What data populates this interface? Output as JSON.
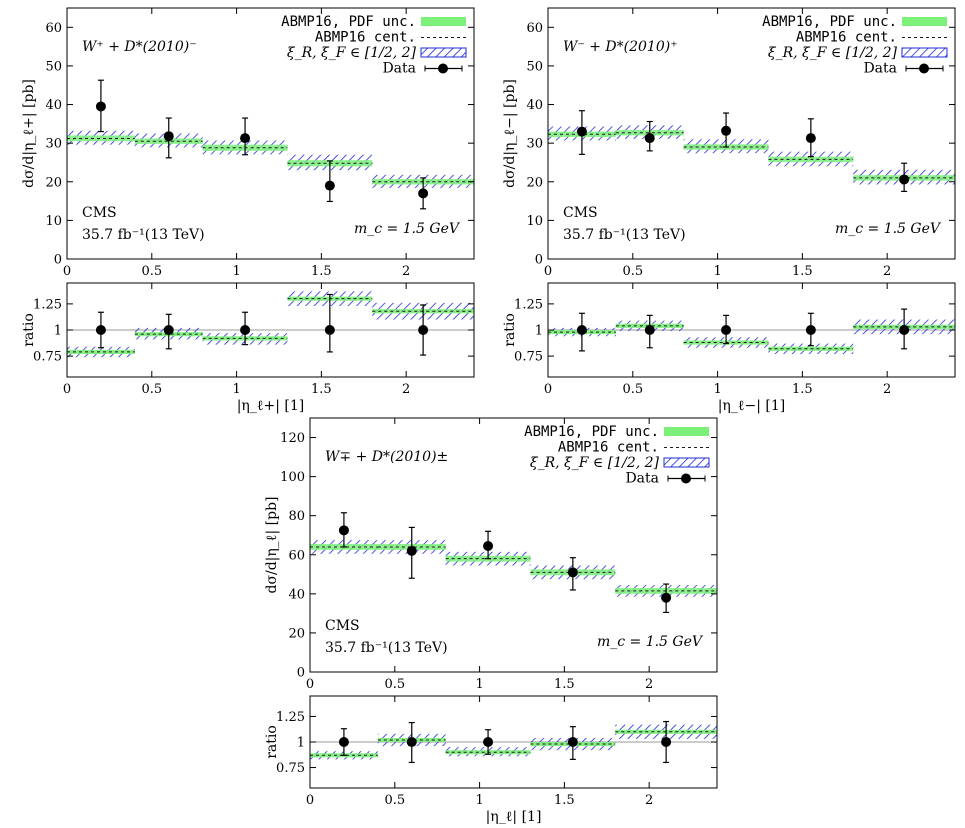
{
  "chart_data": [
    {
      "type": "step-band-with-points",
      "title": "",
      "process": "W⁺ + D*(2010)⁻",
      "xlabel": "|η_ℓ+| [1]",
      "ylabel": "dσ/d|η_ℓ+| [pb]",
      "ratio_ylabel": "ratio",
      "xlim": [
        0,
        2.4
      ],
      "ylim": [
        0,
        65
      ],
      "ratio_ylim": [
        0.55,
        1.45
      ],
      "xticks": [
        "0",
        "0.5",
        "1",
        "1.5",
        "2"
      ],
      "yticks": [
        "0",
        "10",
        "20",
        "30",
        "40",
        "50",
        "60"
      ],
      "ratio_yticks": [
        "0.75",
        "1",
        "1.25"
      ],
      "experiment": "CMS",
      "lumi_text": "35.7 fb⁻¹(13 TeV)",
      "mass_text": "m_c = 1.5 GeV",
      "legend": [
        "ABMP16, PDF unc.",
        "ABMP16 cent.",
        "ξ_R, ξ_F ∈ [1/2, 2]",
        "Data"
      ],
      "bins": [
        0,
        0.4,
        0.8,
        1.3,
        1.8,
        2.4
      ],
      "prediction_central": [
        31.2,
        30.5,
        28.8,
        24.8,
        20.0
      ],
      "pdf_unc_band": [
        [
          30.5,
          32.0
        ],
        [
          29.8,
          31.2
        ],
        [
          28.0,
          29.6
        ],
        [
          24.0,
          25.6
        ],
        [
          19.3,
          20.7
        ]
      ],
      "scale_unc_band": [
        [
          29.6,
          33.2
        ],
        [
          28.9,
          32.5
        ],
        [
          27.1,
          30.7
        ],
        [
          23.0,
          27.0
        ],
        [
          18.4,
          21.8
        ]
      ],
      "data_x": [
        0.2,
        0.6,
        1.05,
        1.55,
        2.1
      ],
      "data_y": [
        39.5,
        31.8,
        31.3,
        19.0,
        17.0
      ],
      "data_err_hi": [
        6.8,
        4.7,
        5.2,
        6.4,
        4.0
      ],
      "data_err_lo": [
        6.5,
        5.6,
        4.3,
        4.1,
        4.0
      ],
      "ratio_central": [
        0.79,
        0.96,
        0.92,
        1.3,
        1.18
      ],
      "ratio_band": [
        [
          0.74,
          0.84
        ],
        [
          0.91,
          1.02
        ],
        [
          0.86,
          0.97
        ],
        [
          1.23,
          1.37
        ],
        [
          1.1,
          1.26
        ]
      ],
      "ratio_data_err": [
        [
          0.83,
          1.17
        ],
        [
          0.82,
          1.15
        ],
        [
          0.86,
          1.17
        ],
        [
          0.79,
          1.34
        ],
        [
          0.76,
          1.24
        ]
      ]
    },
    {
      "type": "step-band-with-points",
      "title": "",
      "process": "W⁻ + D*(2010)⁺",
      "xlabel": "|η_ℓ−| [1]",
      "ylabel": "dσ/d|η_ℓ−| [pb]",
      "ratio_ylabel": "ratio",
      "xlim": [
        0,
        2.4
      ],
      "ylim": [
        0,
        65
      ],
      "ratio_ylim": [
        0.55,
        1.45
      ],
      "xticks": [
        "0",
        "0.5",
        "1",
        "1.5",
        "2"
      ],
      "yticks": [
        "0",
        "10",
        "20",
        "30",
        "40",
        "50",
        "60"
      ],
      "ratio_yticks": [
        "0.75",
        "1",
        "1.25"
      ],
      "experiment": "CMS",
      "lumi_text": "35.7 fb⁻¹(13 TeV)",
      "mass_text": "m_c = 1.5 GeV",
      "legend": [
        "ABMP16, PDF unc.",
        "ABMP16 cent.",
        "ξ_R, ξ_F ∈ [1/2, 2]",
        "Data"
      ],
      "bins": [
        0,
        0.4,
        0.8,
        1.3,
        1.8,
        2.4
      ],
      "prediction_central": [
        32.3,
        32.7,
        29.0,
        25.8,
        21.0
      ],
      "pdf_unc_band": [
        [
          31.6,
          33.0
        ],
        [
          32.0,
          33.4
        ],
        [
          28.3,
          29.7
        ],
        [
          25.1,
          26.5
        ],
        [
          20.3,
          21.7
        ]
      ],
      "scale_unc_band": [
        [
          30.7,
          34.3
        ],
        [
          31.1,
          34.6
        ],
        [
          27.4,
          31.0
        ],
        [
          24.0,
          27.8
        ],
        [
          19.3,
          23.1
        ]
      ],
      "data_x": [
        0.2,
        0.6,
        1.05,
        1.55,
        2.1
      ],
      "data_y": [
        33.0,
        31.3,
        33.2,
        31.3,
        20.6
      ],
      "data_err_hi": [
        5.4,
        4.3,
        4.6,
        5.0,
        4.2
      ],
      "data_err_lo": [
        5.9,
        3.3,
        4.2,
        4.8,
        3.1
      ],
      "ratio_central": [
        0.98,
        1.04,
        0.88,
        0.82,
        1.03
      ],
      "ratio_band": [
        [
          0.94,
          1.02
        ],
        [
          0.99,
          1.09
        ],
        [
          0.83,
          0.93
        ],
        [
          0.77,
          0.87
        ],
        [
          0.96,
          1.1
        ]
      ],
      "ratio_data_err": [
        [
          0.8,
          1.16
        ],
        [
          0.83,
          1.14
        ],
        [
          0.87,
          1.14
        ],
        [
          0.85,
          1.16
        ],
        [
          0.82,
          1.2
        ]
      ]
    },
    {
      "type": "step-band-with-points",
      "title": "",
      "process": "W∓ + D*(2010)±",
      "xlabel": "|η_ℓ| [1]",
      "ylabel": "dσ/d|η_ℓ| [pb]",
      "ratio_ylabel": "ratio",
      "xlim": [
        0,
        2.4
      ],
      "ylim": [
        0,
        130
      ],
      "ratio_ylim": [
        0.55,
        1.45
      ],
      "xticks": [
        "0",
        "0.5",
        "1",
        "1.5",
        "2"
      ],
      "yticks": [
        "0",
        "20",
        "40",
        "60",
        "80",
        "100",
        "120"
      ],
      "ratio_yticks": [
        "0.75",
        "1",
        "1.25"
      ],
      "experiment": "CMS",
      "lumi_text": "35.7 fb⁻¹(13 TeV)",
      "mass_text": "m_c = 1.5 GeV",
      "legend": [
        "ABMP16, PDF unc.",
        "ABMP16 cent.",
        "ξ_R, ξ_F ∈ [1/2, 2]",
        "Data"
      ],
      "bins": [
        0,
        0.4,
        0.8,
        1.3,
        1.8,
        2.4
      ],
      "prediction_central": [
        64.0,
        64.0,
        58.0,
        51.0,
        41.5
      ],
      "pdf_unc_band": [
        [
          62.5,
          65.5
        ],
        [
          62.5,
          65.5
        ],
        [
          56.5,
          59.5
        ],
        [
          49.5,
          52.5
        ],
        [
          40.0,
          43.0
        ]
      ],
      "scale_unc_band": [
        [
          60.5,
          67.5
        ],
        [
          60.5,
          67.5
        ],
        [
          54.5,
          61.5
        ],
        [
          47.5,
          54.5
        ],
        [
          38.5,
          44.5
        ]
      ],
      "data_x": [
        0.2,
        0.6,
        1.05,
        1.55,
        2.1
      ],
      "data_y": [
        72.5,
        62.0,
        64.5,
        51.0,
        38.0
      ],
      "data_err_hi": [
        9.0,
        12.0,
        7.5,
        7.5,
        7.0
      ],
      "data_err_lo": [
        8.5,
        14.0,
        6.5,
        9.0,
        7.5
      ],
      "ratio_central": [
        0.87,
        1.02,
        0.9,
        0.98,
        1.1
      ],
      "ratio_band": [
        [
          0.83,
          0.91
        ],
        [
          0.96,
          1.08
        ],
        [
          0.86,
          0.95
        ],
        [
          0.92,
          1.04
        ],
        [
          1.03,
          1.17
        ]
      ],
      "ratio_data_err": [
        [
          0.87,
          1.13
        ],
        [
          0.8,
          1.19
        ],
        [
          0.88,
          1.12
        ],
        [
          0.83,
          1.15
        ],
        [
          0.8,
          1.2
        ]
      ]
    }
  ]
}
